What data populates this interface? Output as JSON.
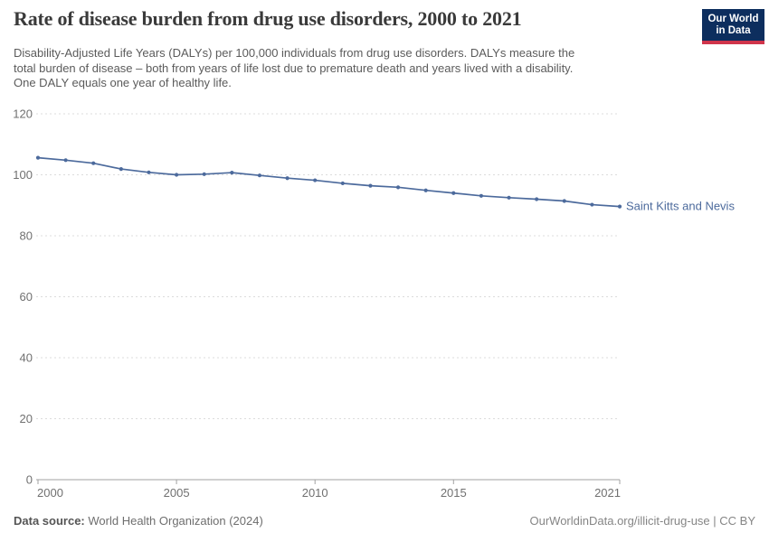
{
  "header": {
    "title": "Rate of disease burden from drug use disorders, 2000 to 2021",
    "subtitle_lines": [
      "Disability-Adjusted Life Years (DALYs) per 100,000 individuals from drug use disorders. DALYs measure the",
      "total burden of disease – both from years of life lost due to premature death and years lived with a disability.",
      "One DALY equals one year of healthy life."
    ],
    "logo": {
      "line1": "Our World",
      "line2": "in Data"
    }
  },
  "chart_data": {
    "type": "line",
    "title": "Rate of disease burden from drug use disorders, 2000 to 2021",
    "x": [
      2000,
      2001,
      2002,
      2003,
      2004,
      2005,
      2006,
      2007,
      2008,
      2009,
      2010,
      2011,
      2012,
      2013,
      2014,
      2015,
      2016,
      2017,
      2018,
      2019,
      2020,
      2021
    ],
    "series": [
      {
        "name": "Saint Kitts and Nevis",
        "values": [
          105.6,
          104.8,
          103.8,
          101.9,
          100.8,
          100.0,
          100.2,
          100.7,
          99.8,
          98.9,
          98.2,
          97.2,
          96.4,
          95.9,
          94.9,
          94.0,
          93.1,
          92.5,
          92.0,
          91.4,
          90.2,
          89.6
        ]
      }
    ],
    "xlabel": "",
    "ylabel": "",
    "ylim": [
      0,
      120
    ],
    "ytick_interval": 20,
    "xticks": [
      2000,
      2005,
      2010,
      2015,
      2021
    ],
    "grid": "horizontal-dashed",
    "legend_position": "end-of-line-label",
    "end_label": "Saint Kitts and Nevis"
  },
  "footer": {
    "data_source_label": "Data source:",
    "data_source_value": "World Health Organization (2024)",
    "right": "OurWorldinData.org/illicit-drug-use | CC BY"
  },
  "colors": {
    "line": "#4c6a9c",
    "grid": "#dcdcdc",
    "axis": "#a1a1a1",
    "tick_label": "#707070",
    "title": "#3a3a3a",
    "subtitle": "#5b5b5b",
    "logo_bg": "#0d2e5e",
    "logo_bar": "#d0354b"
  }
}
